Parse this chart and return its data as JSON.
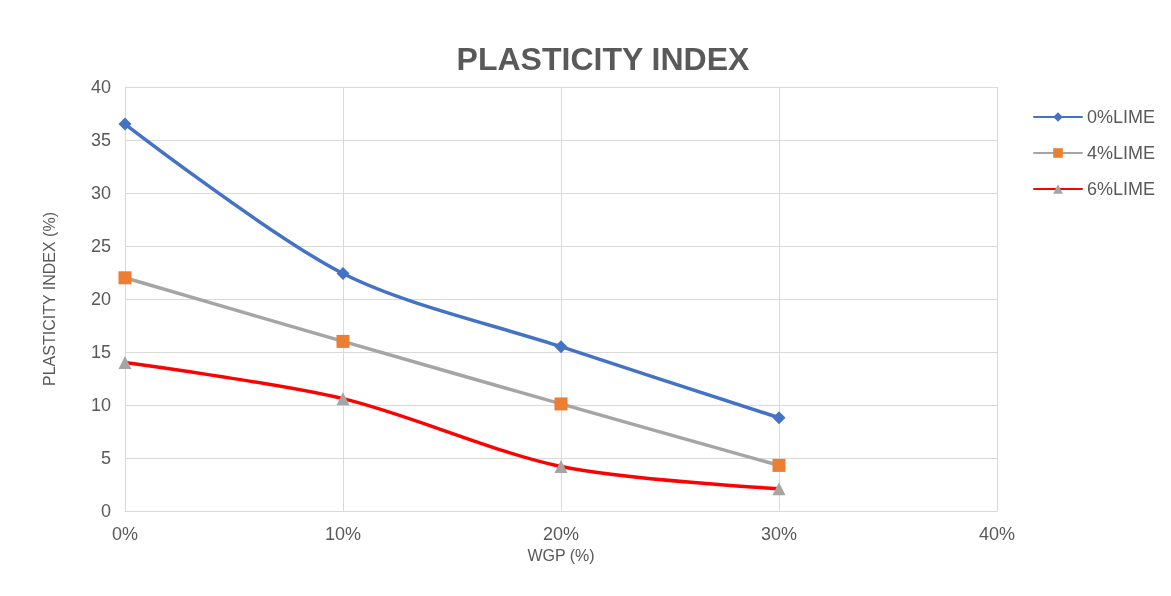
{
  "chart_data": {
    "type": "line",
    "title": "PLASTICITY INDEX",
    "xlabel": "WGP (%)",
    "ylabel": "PLASTICITY INDEX (%)",
    "x": [
      0,
      10,
      20,
      30
    ],
    "series": [
      {
        "name": "0%LIME",
        "color": "#4472c4",
        "marker": "diamond",
        "values": [
          36.5,
          22.4,
          15.5,
          8.8
        ]
      },
      {
        "name": "4%LIME",
        "color": "#a5a5a5",
        "colors": [
          "#ed7d31",
          "#ed7d31",
          "#ed7d31",
          "#ed7d31"
        ],
        "marker": "square",
        "values": [
          22,
          16,
          10.1,
          4.3
        ]
      },
      {
        "name": "6%LIME",
        "color": "#ff0000",
        "colors": [
          "#a5a5a5",
          "#a5a5a5",
          "#a5a5a5",
          "#a5a5a5"
        ],
        "marker": "triangle",
        "values": [
          14,
          10.6,
          4.2,
          2.1
        ]
      }
    ],
    "xlim": [
      0,
      40
    ],
    "xticks": [
      {
        "value": 0,
        "label": "0%"
      },
      {
        "value": 10,
        "label": "10%"
      },
      {
        "value": 20,
        "label": "20%"
      },
      {
        "value": 30,
        "label": "30%"
      },
      {
        "value": 40,
        "label": "40%"
      }
    ],
    "ylim": [
      0,
      40
    ],
    "yticks": [
      0,
      5,
      10,
      15,
      20,
      25,
      30,
      35,
      40
    ],
    "grid": true,
    "legend": "right",
    "line_style": "solid"
  }
}
